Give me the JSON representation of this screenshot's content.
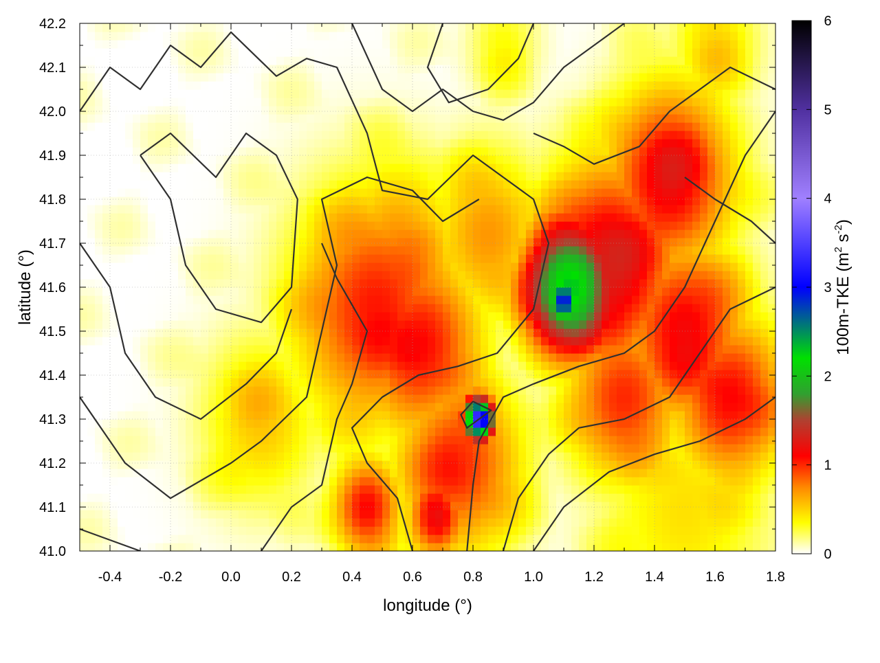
{
  "chart_data": {
    "type": "heatmap",
    "title": "",
    "xlabel": "longitude (°)",
    "ylabel": "latitude (°)",
    "colorbar_label_main": "100m-TKE (m",
    "colorbar_label_sup1": "2",
    "colorbar_label_mid": " s",
    "colorbar_label_sup2": "-2",
    "colorbar_label_end": ")",
    "xlim": [
      -0.5,
      1.8
    ],
    "ylim": [
      41.0,
      42.2
    ],
    "x_ticks": [
      "-0.4",
      "-0.2",
      "0.0",
      "0.2",
      "0.4",
      "0.6",
      "0.8",
      "1.0",
      "1.2",
      "1.4",
      "1.6",
      "1.8"
    ],
    "x_tick_values": [
      -0.4,
      -0.2,
      0.0,
      0.2,
      0.4,
      0.6,
      0.8,
      1.0,
      1.2,
      1.4,
      1.6,
      1.8
    ],
    "y_ticks": [
      "41.0",
      "41.1",
      "41.2",
      "41.3",
      "41.4",
      "41.5",
      "41.6",
      "41.7",
      "41.8",
      "41.9",
      "42.0",
      "42.1",
      "42.2"
    ],
    "y_tick_values": [
      41.0,
      41.1,
      41.2,
      41.3,
      41.4,
      41.5,
      41.6,
      41.7,
      41.8,
      41.9,
      42.0,
      42.1,
      42.2
    ],
    "colorbar_range": [
      0,
      6
    ],
    "colorbar_ticks": [
      "0",
      "1",
      "2",
      "3",
      "4",
      "5",
      "6"
    ],
    "colorbar_tick_values": [
      0,
      1,
      2,
      3,
      4,
      5,
      6
    ],
    "colormap": [
      {
        "value": 0.0,
        "color": "#ffffff"
      },
      {
        "value": 0.35,
        "color": "#ffff00"
      },
      {
        "value": 0.75,
        "color": "#ff8800"
      },
      {
        "value": 1.1,
        "color": "#ff0000"
      },
      {
        "value": 1.5,
        "color": "#b04030"
      },
      {
        "value": 1.8,
        "color": "#30a030"
      },
      {
        "value": 2.2,
        "color": "#00e000"
      },
      {
        "value": 3.0,
        "color": "#0000ff"
      },
      {
        "value": 4.0,
        "color": "#a080ff"
      },
      {
        "value": 5.0,
        "color": "#5030a0"
      },
      {
        "value": 6.0,
        "color": "#000000"
      }
    ],
    "field_blobs": [
      {
        "x": 0.48,
        "y": 41.55,
        "r": 0.28,
        "v": 1.05
      },
      {
        "x": 0.62,
        "y": 41.47,
        "r": 0.22,
        "v": 1.1
      },
      {
        "x": 0.55,
        "y": 41.68,
        "r": 0.22,
        "v": 0.75
      },
      {
        "x": 0.85,
        "y": 41.72,
        "r": 0.2,
        "v": 0.7
      },
      {
        "x": 1.12,
        "y": 41.6,
        "r": 0.16,
        "v": 2.3
      },
      {
        "x": 1.1,
        "y": 41.57,
        "r": 0.06,
        "v": 3.0
      },
      {
        "x": 1.25,
        "y": 41.65,
        "r": 0.25,
        "v": 1.3
      },
      {
        "x": 1.45,
        "y": 41.85,
        "r": 0.22,
        "v": 1.2
      },
      {
        "x": 1.5,
        "y": 41.5,
        "r": 0.22,
        "v": 1.15
      },
      {
        "x": 1.65,
        "y": 41.35,
        "r": 0.2,
        "v": 1.1
      },
      {
        "x": 1.3,
        "y": 41.35,
        "r": 0.2,
        "v": 1.0
      },
      {
        "x": 0.75,
        "y": 41.2,
        "r": 0.22,
        "v": 1.0
      },
      {
        "x": 0.82,
        "y": 41.3,
        "r": 0.05,
        "v": 3.5
      },
      {
        "x": 0.45,
        "y": 41.1,
        "r": 0.12,
        "v": 1.1
      },
      {
        "x": 0.68,
        "y": 41.08,
        "r": 0.1,
        "v": 1.2
      },
      {
        "x": 0.1,
        "y": 41.3,
        "r": 0.2,
        "v": 0.55
      },
      {
        "x": 1.5,
        "y": 41.1,
        "r": 0.3,
        "v": 0.45
      },
      {
        "x": 1.6,
        "y": 42.15,
        "r": 0.15,
        "v": 0.5
      },
      {
        "x": 0.9,
        "y": 42.15,
        "r": 0.12,
        "v": 0.35
      }
    ],
    "contours": [
      [
        [
          -0.5,
          42.0
        ],
        [
          -0.4,
          42.1
        ],
        [
          -0.3,
          42.05
        ],
        [
          -0.2,
          42.15
        ],
        [
          -0.1,
          42.1
        ],
        [
          0.0,
          42.18
        ],
        [
          0.15,
          42.08
        ],
        [
          0.25,
          42.12
        ],
        [
          0.35,
          42.1
        ],
        [
          0.45,
          41.95
        ],
        [
          0.5,
          41.82
        ],
        [
          0.65,
          41.8
        ],
        [
          0.8,
          41.9
        ],
        [
          0.9,
          41.85
        ]
      ],
      [
        [
          -0.3,
          41.9
        ],
        [
          -0.2,
          41.8
        ],
        [
          -0.15,
          41.65
        ],
        [
          -0.05,
          41.55
        ],
        [
          0.1,
          41.52
        ],
        [
          0.2,
          41.6
        ],
        [
          0.22,
          41.8
        ],
        [
          0.15,
          41.9
        ],
        [
          0.05,
          41.95
        ],
        [
          -0.05,
          41.85
        ],
        [
          -0.2,
          41.95
        ],
        [
          -0.3,
          41.9
        ]
      ],
      [
        [
          -0.5,
          41.7
        ],
        [
          -0.4,
          41.6
        ],
        [
          -0.35,
          41.45
        ],
        [
          -0.25,
          41.35
        ],
        [
          -0.1,
          41.3
        ],
        [
          0.05,
          41.38
        ],
        [
          0.15,
          41.45
        ],
        [
          0.2,
          41.55
        ]
      ],
      [
        [
          -0.5,
          41.35
        ],
        [
          -0.35,
          41.2
        ],
        [
          -0.2,
          41.12
        ],
        [
          0.0,
          41.2
        ],
        [
          0.1,
          41.25
        ],
        [
          0.25,
          41.35
        ],
        [
          0.3,
          41.5
        ],
        [
          0.35,
          41.65
        ],
        [
          0.3,
          41.8
        ],
        [
          0.45,
          41.85
        ],
        [
          0.6,
          41.82
        ],
        [
          0.7,
          41.75
        ],
        [
          0.82,
          41.8
        ]
      ],
      [
        [
          -0.5,
          41.05
        ],
        [
          -0.3,
          41.0
        ]
      ],
      [
        [
          0.1,
          41.0
        ],
        [
          0.2,
          41.1
        ],
        [
          0.3,
          41.15
        ],
        [
          0.35,
          41.3
        ],
        [
          0.4,
          41.38
        ],
        [
          0.45,
          41.5
        ],
        [
          0.35,
          41.62
        ],
        [
          0.3,
          41.7
        ]
      ],
      [
        [
          0.6,
          41.0
        ],
        [
          0.55,
          41.12
        ],
        [
          0.45,
          41.2
        ],
        [
          0.4,
          41.28
        ],
        [
          0.5,
          41.35
        ],
        [
          0.62,
          41.4
        ],
        [
          0.75,
          41.42
        ],
        [
          0.88,
          41.45
        ],
        [
          1.0,
          41.55
        ],
        [
          1.05,
          41.7
        ],
        [
          1.0,
          41.8
        ],
        [
          0.9,
          41.85
        ]
      ],
      [
        [
          0.78,
          41.0
        ],
        [
          0.8,
          41.15
        ],
        [
          0.82,
          41.25
        ],
        [
          0.9,
          41.35
        ],
        [
          1.0,
          41.38
        ],
        [
          1.15,
          41.42
        ],
        [
          1.3,
          41.45
        ],
        [
          1.4,
          41.5
        ],
        [
          1.5,
          41.6
        ],
        [
          1.6,
          41.75
        ],
        [
          1.7,
          41.9
        ],
        [
          1.8,
          42.0
        ]
      ],
      [
        [
          0.9,
          41.0
        ],
        [
          0.95,
          41.12
        ],
        [
          1.05,
          41.22
        ],
        [
          1.15,
          41.28
        ],
        [
          1.3,
          41.3
        ],
        [
          1.45,
          41.35
        ],
        [
          1.55,
          41.45
        ],
        [
          1.65,
          41.55
        ],
        [
          1.8,
          41.6
        ]
      ],
      [
        [
          1.0,
          41.0
        ],
        [
          1.1,
          41.1
        ],
        [
          1.25,
          41.18
        ],
        [
          1.4,
          41.22
        ],
        [
          1.55,
          41.25
        ],
        [
          1.7,
          41.3
        ],
        [
          1.8,
          41.35
        ]
      ],
      [
        [
          0.4,
          42.2
        ],
        [
          0.5,
          42.05
        ],
        [
          0.6,
          42.0
        ],
        [
          0.7,
          42.05
        ],
        [
          0.8,
          42.0
        ],
        [
          0.9,
          41.98
        ],
        [
          1.0,
          42.02
        ],
        [
          1.1,
          42.1
        ],
        [
          1.2,
          42.15
        ],
        [
          1.3,
          42.2
        ]
      ],
      [
        [
          1.0,
          41.95
        ],
        [
          1.1,
          41.92
        ],
        [
          1.2,
          41.88
        ],
        [
          1.35,
          41.92
        ],
        [
          1.45,
          42.0
        ],
        [
          1.55,
          42.05
        ],
        [
          1.65,
          42.1
        ],
        [
          1.8,
          42.05
        ]
      ],
      [
        [
          0.7,
          42.2
        ],
        [
          0.65,
          42.1
        ],
        [
          0.72,
          42.02
        ],
        [
          0.85,
          42.05
        ],
        [
          0.95,
          42.12
        ],
        [
          1.0,
          42.2
        ]
      ],
      [
        [
          1.5,
          41.85
        ],
        [
          1.6,
          41.8
        ],
        [
          1.72,
          41.75
        ],
        [
          1.8,
          41.7
        ]
      ],
      [
        [
          0.82,
          41.3
        ],
        [
          0.78,
          41.28
        ],
        [
          0.76,
          41.31
        ],
        [
          0.8,
          41.34
        ],
        [
          0.86,
          41.32
        ],
        [
          0.82,
          41.3
        ]
      ]
    ]
  }
}
